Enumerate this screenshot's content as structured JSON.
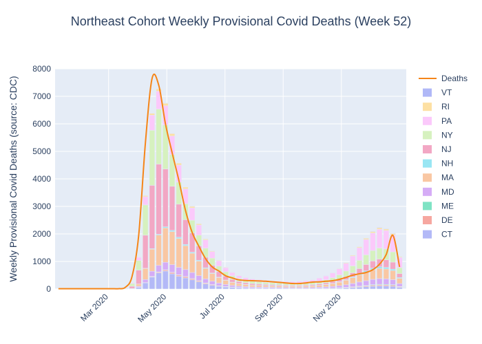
{
  "chart_data": {
    "type": "bar",
    "title": "Northeast Cohort Weekly Provisional Covid Deaths (Week 52)",
    "xlabel": "",
    "ylabel": "Weekly Provisional Covid Deaths (source: CDC)",
    "ylim": [
      0,
      8000
    ],
    "yticks": [
      0,
      1000,
      2000,
      3000,
      4000,
      5000,
      6000,
      7000,
      8000
    ],
    "ytick_labels": [
      "0",
      "1000",
      "2000",
      "3000",
      "4000",
      "5000",
      "6000",
      "7000",
      "8000"
    ],
    "xtick_labels": [
      "Mar 2020",
      "May 2020",
      "Jul 2020",
      "Sep 2020",
      "Nov 2020"
    ],
    "xtick_weeks": [
      8.5,
      17.2,
      25.9,
      34.6,
      43.3
    ],
    "grid": true,
    "barmode": "stack",
    "legend_placement": "right",
    "legend_order": [
      "Deaths",
      "VT",
      "RI",
      "PA",
      "NY",
      "NJ",
      "NH",
      "MA",
      "MD",
      "ME",
      "DE",
      "CT"
    ],
    "weeks": [
      1,
      2,
      3,
      4,
      5,
      6,
      7,
      8,
      9,
      10,
      11,
      12,
      13,
      14,
      15,
      16,
      17,
      18,
      19,
      20,
      21,
      22,
      23,
      24,
      25,
      26,
      27,
      28,
      29,
      30,
      31,
      32,
      33,
      34,
      35,
      36,
      37,
      38,
      39,
      40,
      41,
      42,
      43,
      44,
      45,
      46,
      47,
      48,
      49,
      50,
      51,
      52
    ],
    "series": [
      {
        "name": "CT",
        "color": "#b3b9f7",
        "values": [
          0,
          0,
          0,
          0,
          0,
          0,
          0,
          0,
          0,
          0,
          0,
          5,
          60,
          220,
          430,
          580,
          650,
          550,
          460,
          400,
          330,
          260,
          180,
          130,
          95,
          70,
          55,
          40,
          30,
          25,
          22,
          20,
          18,
          16,
          14,
          12,
          12,
          12,
          12,
          14,
          16,
          20,
          26,
          35,
          50,
          65,
          80,
          100,
          110,
          105,
          95,
          55
        ]
      },
      {
        "name": "DE",
        "color": "#f6a7a0",
        "values": [
          0,
          0,
          0,
          0,
          0,
          0,
          0,
          0,
          0,
          0,
          0,
          0,
          3,
          10,
          20,
          30,
          40,
          45,
          45,
          45,
          40,
          35,
          30,
          25,
          20,
          16,
          12,
          10,
          8,
          7,
          6,
          6,
          6,
          5,
          5,
          5,
          5,
          5,
          6,
          7,
          8,
          10,
          12,
          15,
          20,
          25,
          30,
          35,
          40,
          40,
          38,
          22
        ]
      },
      {
        "name": "ME",
        "color": "#7fe3c4",
        "values": [
          0,
          0,
          0,
          0,
          0,
          0,
          0,
          0,
          0,
          0,
          0,
          0,
          1,
          3,
          5,
          7,
          9,
          10,
          10,
          10,
          9,
          8,
          7,
          6,
          5,
          4,
          3,
          3,
          3,
          2,
          2,
          2,
          2,
          2,
          2,
          2,
          2,
          2,
          2,
          3,
          4,
          5,
          6,
          8,
          10,
          13,
          16,
          20,
          22,
          22,
          20,
          12
        ]
      },
      {
        "name": "MD",
        "color": "#d5acf6",
        "values": [
          0,
          0,
          0,
          0,
          0,
          0,
          0,
          0,
          0,
          0,
          0,
          5,
          35,
          110,
          190,
          240,
          270,
          280,
          270,
          250,
          220,
          180,
          150,
          120,
          95,
          75,
          60,
          50,
          45,
          42,
          40,
          38,
          36,
          35,
          34,
          34,
          35,
          36,
          38,
          42,
          50,
          60,
          75,
          95,
          120,
          150,
          175,
          195,
          205,
          200,
          185,
          110
        ]
      },
      {
        "name": "MA",
        "color": "#f9c7a3",
        "values": [
          0,
          0,
          0,
          0,
          0,
          0,
          0,
          0,
          0,
          0,
          0,
          10,
          80,
          400,
          800,
          1100,
          1250,
          1200,
          1050,
          870,
          700,
          530,
          380,
          280,
          200,
          150,
          110,
          90,
          75,
          65,
          60,
          55,
          50,
          48,
          46,
          45,
          46,
          50,
          55,
          65,
          80,
          100,
          130,
          165,
          210,
          260,
          310,
          350,
          370,
          360,
          330,
          190
        ]
      },
      {
        "name": "NH",
        "color": "#99e6f3",
        "values": [
          0,
          0,
          0,
          0,
          0,
          0,
          0,
          0,
          0,
          0,
          0,
          0,
          3,
          10,
          20,
          30,
          40,
          45,
          45,
          42,
          38,
          32,
          25,
          18,
          14,
          10,
          8,
          6,
          5,
          4,
          4,
          4,
          4,
          4,
          4,
          4,
          4,
          4,
          5,
          6,
          8,
          10,
          14,
          20,
          28,
          38,
          48,
          56,
          60,
          58,
          52,
          30
        ]
      },
      {
        "name": "NJ",
        "color": "#f2a7c4",
        "values": [
          0,
          0,
          0,
          0,
          0,
          0,
          0,
          0,
          0,
          0,
          5,
          80,
          500,
          1200,
          2300,
          2550,
          2100,
          1600,
          1200,
          900,
          700,
          520,
          380,
          280,
          200,
          140,
          100,
          75,
          60,
          50,
          45,
          40,
          38,
          36,
          34,
          33,
          34,
          36,
          40,
          48,
          58,
          72,
          90,
          115,
          150,
          190,
          230,
          260,
          280,
          275,
          255,
          140
        ]
      },
      {
        "name": "NY",
        "color": "#d6f1bf",
        "values": [
          0,
          0,
          0,
          0,
          0,
          0,
          0,
          0,
          0,
          0,
          10,
          100,
          350,
          1100,
          2000,
          2000,
          1600,
          1150,
          800,
          580,
          460,
          390,
          330,
          260,
          200,
          160,
          130,
          110,
          95,
          85,
          80,
          75,
          72,
          70,
          68,
          68,
          70,
          75,
          82,
          95,
          110,
          130,
          160,
          200,
          250,
          300,
          350,
          380,
          400,
          395,
          370,
          215
        ]
      },
      {
        "name": "PA",
        "color": "#fbc9fb",
        "values": [
          0,
          0,
          0,
          0,
          0,
          0,
          0,
          0,
          0,
          0,
          5,
          30,
          120,
          300,
          550,
          650,
          700,
          680,
          620,
          540,
          450,
          370,
          300,
          240,
          190,
          150,
          120,
          100,
          90,
          85,
          80,
          75,
          72,
          70,
          68,
          68,
          72,
          80,
          95,
          115,
          140,
          175,
          220,
          280,
          360,
          460,
          560,
          640,
          680,
          670,
          620,
          370
        ]
      },
      {
        "name": "RI",
        "color": "#fde0a3",
        "values": [
          0,
          0,
          0,
          0,
          0,
          0,
          0,
          0,
          0,
          0,
          0,
          3,
          15,
          40,
          65,
          80,
          85,
          85,
          75,
          65,
          55,
          45,
          35,
          28,
          22,
          17,
          13,
          10,
          9,
          8,
          8,
          7,
          7,
          7,
          7,
          7,
          7,
          8,
          9,
          10,
          12,
          15,
          18,
          23,
          29,
          36,
          43,
          50,
          54,
          53,
          49,
          28
        ]
      },
      {
        "name": "VT",
        "color": "#b0b8f7",
        "values": [
          0,
          0,
          0,
          0,
          0,
          0,
          0,
          0,
          0,
          0,
          0,
          1,
          3,
          8,
          12,
          14,
          14,
          13,
          11,
          9,
          7,
          5,
          4,
          3,
          2,
          2,
          2,
          2,
          2,
          2,
          2,
          2,
          2,
          2,
          2,
          2,
          2,
          2,
          2,
          3,
          4,
          5,
          6,
          8,
          10,
          12,
          14,
          16,
          17,
          17,
          15,
          9
        ]
      }
    ],
    "line": {
      "name": "Deaths",
      "color": "#f58518",
      "values": [
        10,
        10,
        10,
        10,
        10,
        10,
        10,
        10,
        10,
        10,
        60,
        450,
        1950,
        5300,
        7650,
        7400,
        6000,
        4950,
        3950,
        2850,
        2050,
        1550,
        1100,
        800,
        650,
        480,
        400,
        330,
        310,
        300,
        290,
        280,
        260,
        240,
        220,
        200,
        200,
        220,
        250,
        260,
        280,
        300,
        350,
        420,
        500,
        550,
        600,
        700,
        900,
        1250,
        1950,
        800
      ]
    }
  }
}
